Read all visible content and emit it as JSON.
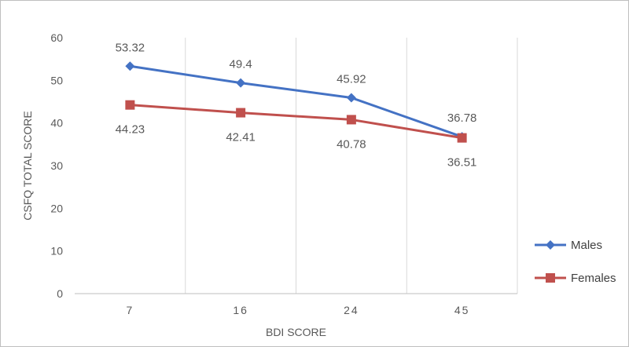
{
  "chart_data": {
    "type": "line",
    "categories": [
      "7",
      "16",
      "24",
      "45"
    ],
    "series": [
      {
        "name": "Males",
        "values": [
          53.32,
          49.4,
          45.92,
          36.78
        ],
        "color": "#4472c4",
        "marker": "diamond"
      },
      {
        "name": "Females",
        "values": [
          44.23,
          42.41,
          40.78,
          36.51
        ],
        "color": "#c0504d",
        "marker": "square"
      }
    ],
    "xlabel": "BDI SCORE",
    "ylabel": "CSFQ TOTAL SCORE",
    "ylim": [
      0,
      60
    ],
    "yticks": [
      0,
      10,
      20,
      30,
      40,
      50,
      60
    ],
    "grid": "vertical",
    "legend": "right",
    "data_labels": true
  }
}
